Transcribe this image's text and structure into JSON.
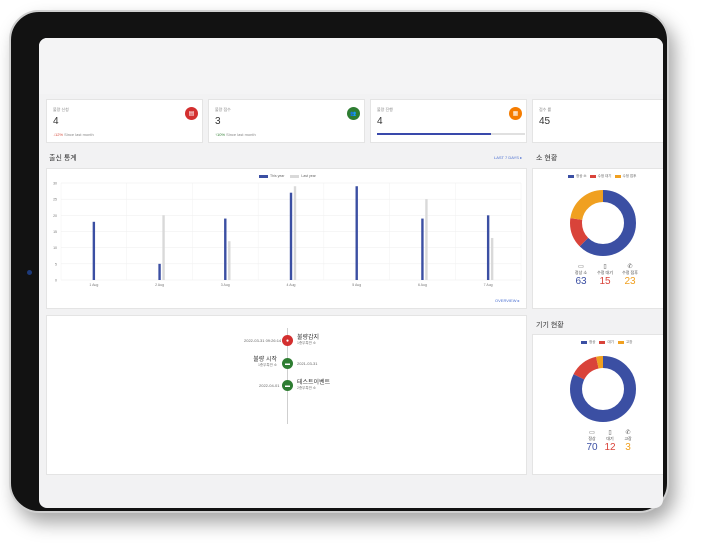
{
  "kpis": [
    {
      "label": "불량 신청",
      "value": "4",
      "trend_arrow": "↓",
      "trend_pct": "12%",
      "trend_text": "Since last month",
      "trend_dir": "down",
      "icon": "list-icon",
      "glyph": "▤",
      "color": "#d32f2f"
    },
    {
      "label": "불량 접수",
      "value": "3",
      "trend_arrow": "↑",
      "trend_pct": "10%",
      "trend_text": "Since last month",
      "trend_dir": "up",
      "icon": "user-group-icon",
      "glyph": "👥",
      "color": "#2e7d32"
    },
    {
      "label": "불량 진행",
      "value": "4",
      "progress": 0.77,
      "icon": "clipboard-icon",
      "glyph": "▦",
      "color": "#f57c00"
    },
    {
      "label": "접수 률",
      "value": "45"
    }
  ],
  "inout_stats": {
    "title": "출신 통계",
    "link": "LAST 7 DAYS",
    "link_arrow": "▸",
    "footer_link": "OVERVIEW",
    "footer_arrow": "▸",
    "legend": [
      {
        "name": "This year",
        "color": "#3b4fa3"
      },
      {
        "name": "Last year",
        "color": "#d9d9d9"
      }
    ]
  },
  "chart_data": {
    "type": "bar",
    "categories": [
      "1 Aug",
      "2 Aug",
      "3 Aug",
      "4 Aug",
      "5 Aug",
      "6 Aug",
      "7 Aug"
    ],
    "series": [
      {
        "name": "This year",
        "values": [
          18,
          5,
          19,
          27,
          29,
          19,
          20
        ]
      },
      {
        "name": "Last year",
        "values": [
          0,
          20,
          12,
          29,
          0,
          25,
          13
        ]
      }
    ],
    "yticks": [
      0,
      5,
      10,
      15,
      20,
      25,
      30
    ],
    "ylim": [
      0,
      30
    ],
    "grid": true,
    "legend": "top-center"
  },
  "timeline": [
    {
      "date": "2022-03-31 09:26:14",
      "title": "불량감지",
      "sub": "1층무특반 소",
      "side": "right",
      "color": "#d32f2f",
      "glyph": "●"
    },
    {
      "date": "2021-03-31",
      "title": "불량 시작",
      "sub": "1층무특반 소",
      "side": "left",
      "color": "#2e7d32",
      "glyph": "▬"
    },
    {
      "date": "2022-04-01",
      "title": "테스트이벤트",
      "sub": "2층무특반 소",
      "side": "right",
      "color": "#2e7d32",
      "glyph": "▬"
    }
  ],
  "situation": {
    "title": "소 현황",
    "legend": [
      {
        "name": "정상 소",
        "color": "#3b4fa3"
      },
      {
        "name": "수정 대기",
        "color": "#d9433a"
      },
      {
        "name": "수정 접후",
        "color": "#f0a020"
      }
    ],
    "stats": [
      {
        "label": "정상 소",
        "value": "63",
        "color": "#3b4fa3",
        "icon": "laptop-icon",
        "glyph": "▭"
      },
      {
        "label": "수정 대기",
        "value": "15",
        "color": "#d9433a",
        "icon": "tablet-icon",
        "glyph": "▯"
      },
      {
        "label": "수정 접후",
        "value": "23",
        "color": "#f0a020",
        "icon": "phone-icon",
        "glyph": "✆"
      }
    ]
  },
  "device_status": {
    "title": "기기 현황",
    "legend": [
      {
        "name": "정상",
        "color": "#3b4fa3"
      },
      {
        "name": "대기",
        "color": "#d9433a"
      },
      {
        "name": "고장",
        "color": "#f0a020"
      }
    ],
    "stats": [
      {
        "label": "정상",
        "value": "70",
        "color": "#3b4fa3",
        "icon": "laptop-icon",
        "glyph": "▭"
      },
      {
        "label": "대기",
        "value": "12",
        "color": "#d9433a",
        "icon": "tablet-icon",
        "glyph": "▯"
      },
      {
        "label": "고장",
        "value": "3",
        "color": "#f0a020",
        "icon": "phone-icon",
        "glyph": "✆"
      }
    ]
  }
}
